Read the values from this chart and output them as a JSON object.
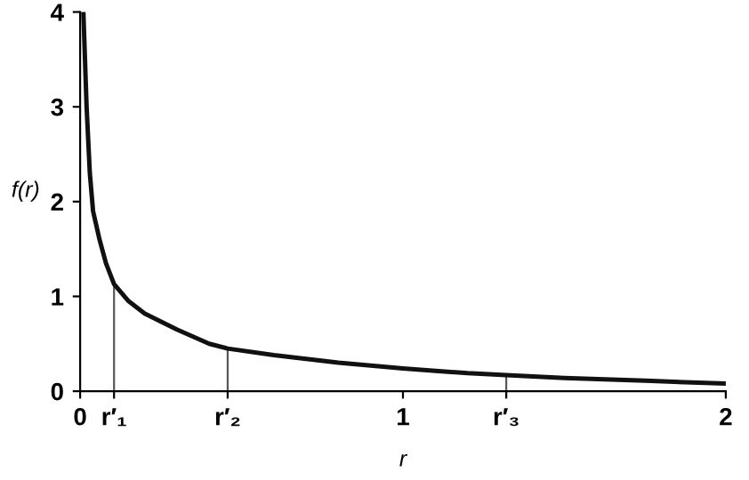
{
  "chart_data": {
    "type": "line",
    "xlabel": "r",
    "ylabel": "f(r)",
    "series": [
      {
        "color": "#111111",
        "x": [
          0.01,
          0.02,
          0.03,
          0.04,
          0.06,
          0.08,
          0.105,
          0.15,
          0.2,
          0.3,
          0.4,
          0.457,
          0.6,
          0.8,
          1.0,
          1.2,
          1.32,
          1.5,
          1.75,
          2.0
        ],
        "values": [
          4.0,
          3.0,
          2.3,
          1.9,
          1.6,
          1.35,
          1.13,
          0.95,
          0.82,
          0.65,
          0.5,
          0.45,
          0.38,
          0.3,
          0.24,
          0.19,
          0.17,
          0.14,
          0.11,
          0.08
        ]
      },
      {
        "type": "bar",
        "color": "#555555",
        "x": [
          0.105,
          0.457,
          1.32
        ],
        "values": [
          1.13,
          0.45,
          0.17
        ]
      }
    ],
    "xlim": [
      0,
      2
    ],
    "ylim": [
      0,
      4
    ],
    "xticks": [
      0,
      {
        "value": 0.105,
        "label": "r′₁"
      },
      {
        "value": 0.457,
        "label": "r′₂"
      },
      1,
      {
        "value": 1.32,
        "label": "r′₃"
      },
      2
    ],
    "yticks": [
      0,
      1,
      2,
      3,
      4
    ],
    "grid": false,
    "marker": "none",
    "line_style": "solid"
  }
}
